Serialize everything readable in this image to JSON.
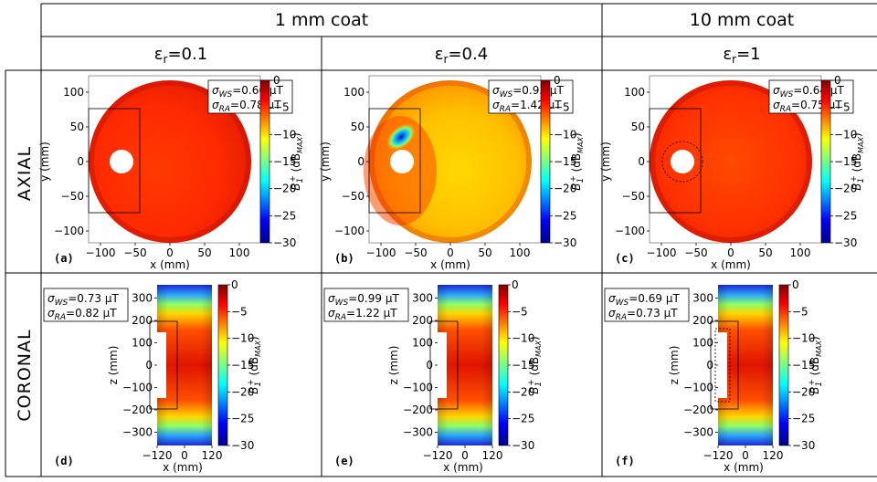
{
  "header": {
    "group1": "1 mm coat",
    "group2": "10 mm coat",
    "eps_prefix": "ε",
    "eps_sub": "r",
    "columns": [
      "=0.1",
      "=0.4",
      "=1"
    ]
  },
  "rows": {
    "axial": "AXIAL",
    "coronal": "CORONAL"
  },
  "axial": {
    "xlabel": "x (mm)",
    "ylabel": "y (mm)",
    "xticks": [
      "−100",
      "−50",
      "0",
      "50",
      "100"
    ],
    "yticks": [
      "100",
      "50",
      "0",
      "−50",
      "−100"
    ]
  },
  "coronal": {
    "xlabel": "x (mm)",
    "ylabel": "z (mm)",
    "xticks": [
      "−120",
      "0",
      "120"
    ],
    "yticks": [
      "300",
      "200",
      "100",
      "0",
      "−100",
      "−200",
      "−300"
    ]
  },
  "colorbar": {
    "ticks": [
      "0",
      "−5",
      "−10",
      "−15",
      "−20",
      "−25",
      "−30"
    ],
    "label": "B₁⁺ (dB_MAX)",
    "range": [
      -30,
      0
    ],
    "colormap": "jet"
  },
  "panels": [
    {
      "id": "(a)",
      "sigma_ws": "σ_WS=0.66 µT",
      "sigma_ra": "σ_RA=0.78 µT"
    },
    {
      "id": "(b)",
      "sigma_ws": "σ_WS=0.93 µT",
      "sigma_ra": "σ_RA=1.42 µT"
    },
    {
      "id": "(c)",
      "sigma_ws": "σ_WS=0.64 µT",
      "sigma_ra": "σ_RA=0.75 µT"
    },
    {
      "id": "(d)",
      "sigma_ws": "σ_WS=0.73 µT",
      "sigma_ra": "σ_RA=0.82 µT"
    },
    {
      "id": "(e)",
      "sigma_ws": "σ_WS=0.99 µT",
      "sigma_ra": "σ_RA=1.22 µT"
    },
    {
      "id": "(f)",
      "sigma_ws": "σ_WS=0.69 µT",
      "sigma_ra": "σ_RA=0.73 µT"
    }
  ]
}
